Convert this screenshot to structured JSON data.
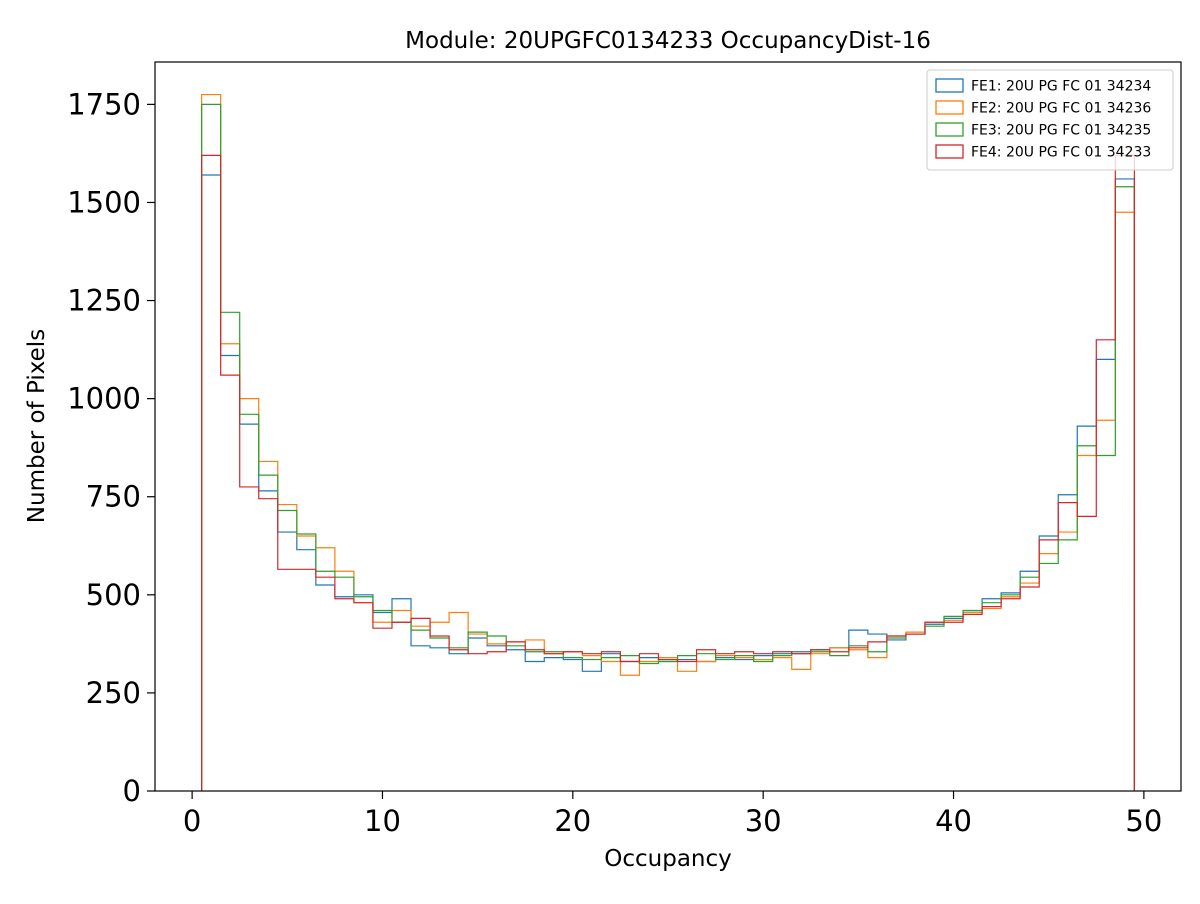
{
  "chart_data": {
    "type": "line",
    "subtype": "step-histogram",
    "title": "Module: 20UPGFC0134233 OccupancyDist-16",
    "xlabel": "Occupancy",
    "ylabel": "Number of Pixels",
    "xlim": [
      -1.95,
      51.95
    ],
    "ylim": [
      0,
      1858
    ],
    "x_ticks": [
      0,
      10,
      20,
      30,
      40,
      50
    ],
    "y_ticks": [
      0,
      250,
      500,
      750,
      1000,
      1250,
      1500,
      1750
    ],
    "grid": false,
    "legend_position": "upper right",
    "bin_start": 0.5,
    "bin_width": 1,
    "series": [
      {
        "id": "fe1",
        "name": "FE1: 20U PG FC 01 34234",
        "color": "#1f77b4",
        "values": [
          1570,
          1110,
          935,
          765,
          660,
          615,
          525,
          495,
          500,
          455,
          490,
          370,
          365,
          350,
          390,
          370,
          360,
          330,
          340,
          335,
          305,
          350,
          330,
          340,
          330,
          335,
          330,
          340,
          335,
          345,
          350,
          355,
          360,
          365,
          410,
          400,
          385,
          400,
          425,
          440,
          455,
          490,
          505,
          560,
          650,
          755,
          930,
          1100,
          1560
        ]
      },
      {
        "id": "fe2",
        "name": "FE2: 20U PG FC 01 34236",
        "color": "#ff7f0e",
        "values": [
          1775,
          1140,
          1000,
          840,
          730,
          650,
          620,
          560,
          480,
          430,
          460,
          420,
          430,
          455,
          400,
          375,
          380,
          385,
          350,
          355,
          345,
          330,
          295,
          330,
          340,
          305,
          330,
          345,
          340,
          335,
          340,
          310,
          350,
          365,
          360,
          340,
          395,
          405,
          430,
          435,
          455,
          465,
          495,
          530,
          605,
          660,
          855,
          945,
          1475
        ]
      },
      {
        "id": "fe3",
        "name": "FE3: 20U PG FC 01 34235",
        "color": "#2ca02c",
        "values": [
          1750,
          1220,
          960,
          805,
          715,
          655,
          560,
          545,
          495,
          460,
          430,
          410,
          390,
          365,
          405,
          395,
          370,
          355,
          355,
          340,
          335,
          340,
          345,
          325,
          330,
          345,
          350,
          335,
          345,
          330,
          345,
          350,
          355,
          345,
          370,
          355,
          390,
          400,
          420,
          445,
          460,
          480,
          500,
          545,
          580,
          640,
          880,
          855,
          1540
        ]
      },
      {
        "id": "fe4",
        "name": "FE4: 20U PG FC 01 34233",
        "color": "#d62728",
        "values": [
          1620,
          1060,
          775,
          745,
          565,
          565,
          545,
          490,
          480,
          415,
          430,
          440,
          395,
          360,
          350,
          355,
          380,
          360,
          350,
          355,
          350,
          355,
          330,
          350,
          335,
          330,
          360,
          350,
          355,
          350,
          355,
          350,
          360,
          355,
          365,
          380,
          395,
          400,
          430,
          430,
          450,
          470,
          490,
          520,
          640,
          735,
          700,
          1150,
          1620
        ]
      }
    ]
  }
}
